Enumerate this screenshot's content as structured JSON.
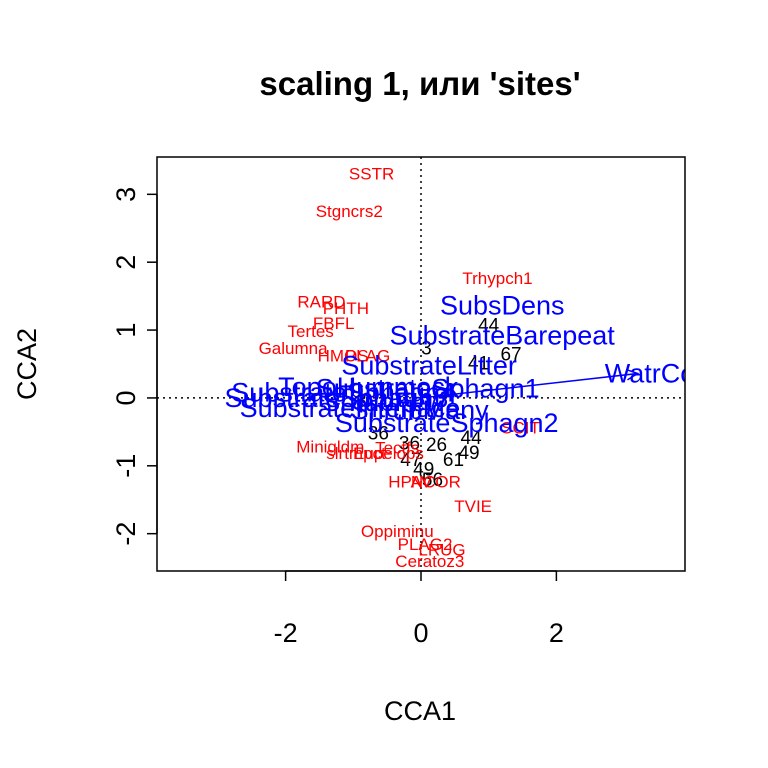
{
  "chart_data": {
    "type": "scatter",
    "title": "scaling 1, или 'sites'",
    "xlabel": "CCA1",
    "ylabel": "CCA2",
    "xlim": [
      -3.9,
      3.9
    ],
    "ylim": [
      -2.55,
      3.55
    ],
    "xticks": [
      -2,
      0,
      2
    ],
    "yticks": [
      -2,
      -1,
      0,
      1,
      2,
      3
    ],
    "reference_lines": {
      "x": 0,
      "y": 0,
      "style": "dotted"
    },
    "colors": {
      "sites": "#000000",
      "species": "#ff0000",
      "env": "#0000ff"
    },
    "species": [
      {
        "label": "SSTR",
        "x": -0.73,
        "y": 3.3
      },
      {
        "label": "Stgncrs2",
        "x": -1.06,
        "y": 2.75
      },
      {
        "label": "Trhypch1",
        "x": 1.13,
        "y": 1.76
      },
      {
        "label": "RARD",
        "x": -1.47,
        "y": 1.41
      },
      {
        "label": "PHTH",
        "x": -1.11,
        "y": 1.32
      },
      {
        "label": "FBFL",
        "x": -1.29,
        "y": 1.1
      },
      {
        "label": "Tertes",
        "x": -1.63,
        "y": 0.98
      },
      {
        "label": "Galumna",
        "x": -1.89,
        "y": 0.73
      },
      {
        "label": "HMOS",
        "x": -1.15,
        "y": 0.62
      },
      {
        "label": "PLAG",
        "x": -0.79,
        "y": 0.62
      },
      {
        "label": "Minigldm",
        "x": -1.34,
        "y": -0.72
      },
      {
        "label": "Tectfs",
        "x": -0.35,
        "y": -0.74
      },
      {
        "label": "slrtmpct",
        "x": -0.96,
        "y": -0.82
      },
      {
        "label": "Eupelops",
        "x": -0.48,
        "y": -0.82
      },
      {
        "label": "SCIT",
        "x": 1.47,
        "y": -0.44
      },
      {
        "label": "HPAV",
        "x": -0.16,
        "y": -1.24
      },
      {
        "label": "NCOR",
        "x": 0.22,
        "y": -1.24
      },
      {
        "label": "TVIE",
        "x": 0.77,
        "y": -1.6
      },
      {
        "label": "Oppiminu",
        "x": -0.35,
        "y": -1.97
      },
      {
        "label": "PLAG2",
        "x": 0.06,
        "y": -2.16
      },
      {
        "label": "LRUG",
        "x": 0.31,
        "y": -2.24
      },
      {
        "label": "Ceratoz3",
        "x": 0.13,
        "y": -2.41
      }
    ],
    "sites": [
      {
        "label": "44",
        "x": 1.0,
        "y": 1.06
      },
      {
        "label": "3",
        "x": 0.08,
        "y": 0.72
      },
      {
        "label": "67",
        "x": 1.33,
        "y": 0.63
      },
      {
        "label": "41",
        "x": 0.85,
        "y": 0.5
      },
      {
        "label": "3",
        "x": -0.88,
        "y": -0.05
      },
      {
        "label": "36",
        "x": -0.63,
        "y": -0.53
      },
      {
        "label": "36",
        "x": -0.17,
        "y": -0.68
      },
      {
        "label": "26",
        "x": 0.23,
        "y": -0.7
      },
      {
        "label": "44",
        "x": 0.74,
        "y": -0.6
      },
      {
        "label": "49",
        "x": 0.71,
        "y": -0.82
      },
      {
        "label": "47",
        "x": -0.15,
        "y": -0.92
      },
      {
        "label": "61",
        "x": 0.48,
        "y": -0.92
      },
      {
        "label": "49",
        "x": 0.04,
        "y": -1.06
      },
      {
        "label": "56",
        "x": 0.17,
        "y": -1.22
      }
    ],
    "env": [
      {
        "label": "SubsDens",
        "x": 1.2,
        "y": 1.36
      },
      {
        "label": "SubstrateBarepeat",
        "x": 1.2,
        "y": 0.92
      },
      {
        "label": "SubstrateLitter",
        "x": 0.12,
        "y": 0.48
      },
      {
        "label": "TopoHummock",
        "x": -0.78,
        "y": 0.16
      },
      {
        "label": "SubstrateSphagn1",
        "x": 0.1,
        "y": 0.14
      },
      {
        "label": "SubstrateSphagn3",
        "x": -1.25,
        "y": 0.0
      },
      {
        "label": "SubstrateSphagn4",
        "x": -1.15,
        "y": 0.08
      },
      {
        "label": "ShrubFew",
        "x": -0.55,
        "y": -0.06
      },
      {
        "label": "SubstrateInterface",
        "x": -1.05,
        "y": -0.15
      },
      {
        "label": "ShrubMany",
        "x": -0.02,
        "y": -0.18
      },
      {
        "label": "SubstrateSphagn2",
        "x": 0.38,
        "y": -0.37
      },
      {
        "label": "WatrCont",
        "x": 3.55,
        "y": 0.36
      }
    ],
    "arrows": [
      {
        "label": "WatrCont",
        "x": 3.2,
        "y": 0.36
      }
    ]
  }
}
